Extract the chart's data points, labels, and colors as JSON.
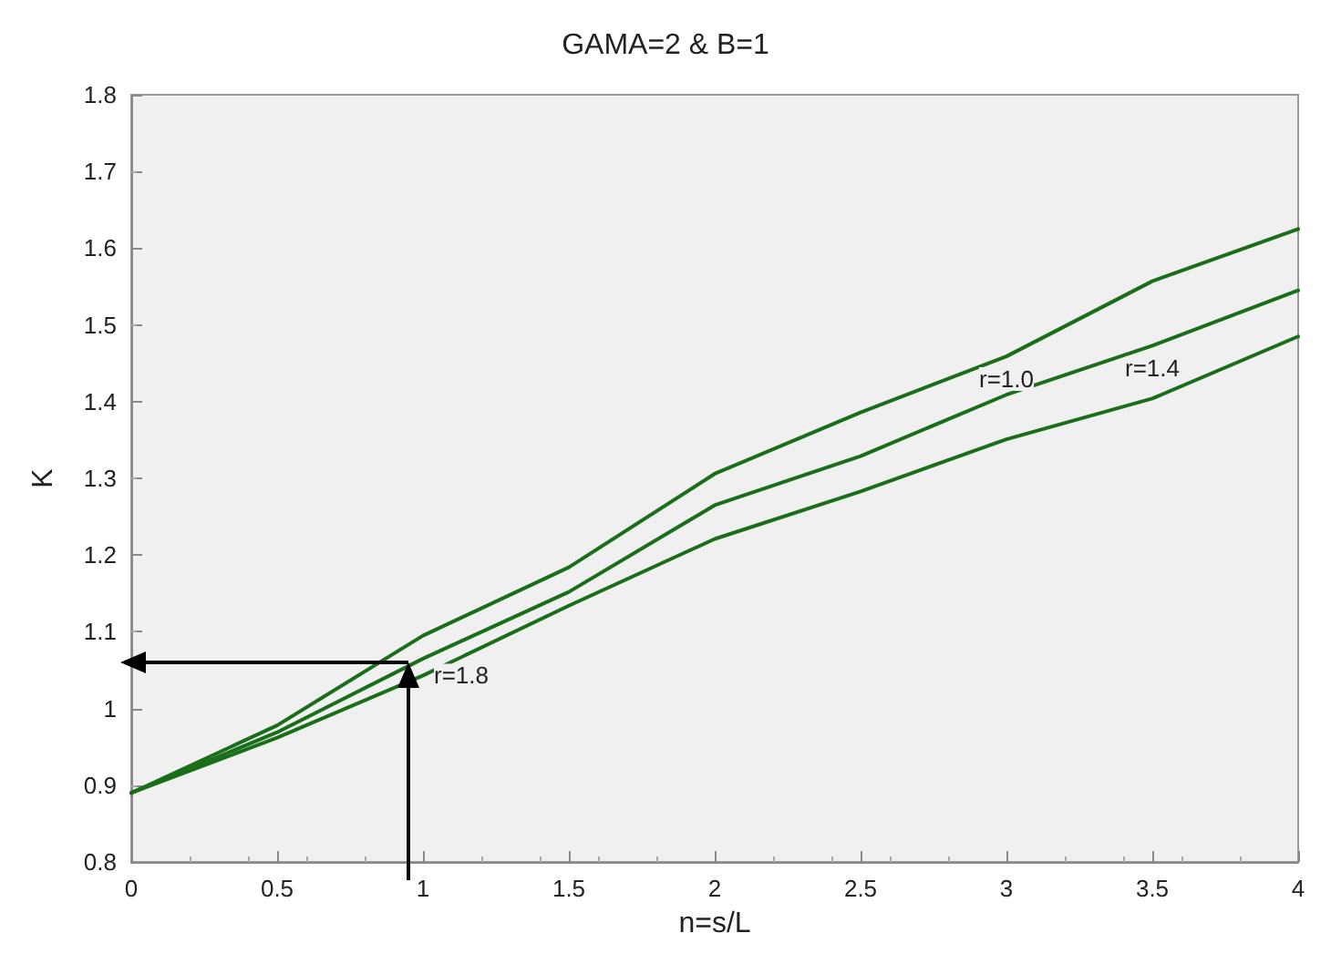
{
  "chart_data": {
    "type": "line",
    "title": "GAMA=2 & B=1",
    "xlabel": "n=s/L",
    "ylabel": "K",
    "x": [
      0,
      0.5,
      1,
      1.5,
      2,
      2.5,
      3,
      3.5,
      4
    ],
    "series": [
      {
        "name": "r=1.0",
        "color": "#1a6e1a",
        "values": [
          0.89,
          0.978,
          1.095,
          1.184,
          1.306,
          1.386,
          1.459,
          1.557,
          1.625
        ]
      },
      {
        "name": "r=1.4",
        "color": "#1a6e1a",
        "values": [
          0.89,
          0.969,
          1.065,
          1.152,
          1.265,
          1.329,
          1.409,
          1.473,
          1.545
        ]
      },
      {
        "name": "r=1.8",
        "color": "#1a6e1a",
        "values": [
          0.89,
          0.962,
          1.043,
          1.134,
          1.221,
          1.283,
          1.351,
          1.404,
          1.485
        ]
      }
    ],
    "xlim": [
      0,
      4
    ],
    "xticks": [
      0,
      0.5,
      1,
      1.5,
      2,
      2.5,
      3,
      3.5,
      4
    ],
    "ylim": [
      0.8,
      1.8
    ],
    "yticks": [
      0.8,
      0.9,
      1,
      1.1,
      1.2,
      1.3,
      1.4,
      1.5,
      1.6,
      1.7,
      1.8
    ],
    "grid": false,
    "marker": "none",
    "line_style": "solid"
  }
}
